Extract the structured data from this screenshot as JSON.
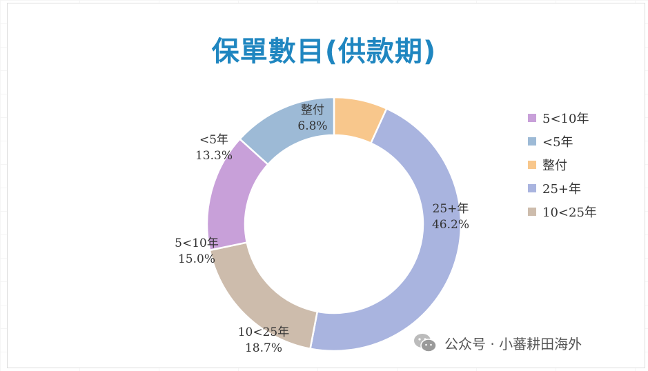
{
  "title": "保單數目(供款期)",
  "watermark": "公众号 · 小蕃耕田海外",
  "chart_data": {
    "type": "pie",
    "donut": true,
    "title": "保單數目(供款期)",
    "slices": [
      {
        "label": "整付",
        "value": 6.8,
        "display": "6.8%",
        "color": "#F8C78C"
      },
      {
        "label": "25+年",
        "value": 46.2,
        "display": "46.2%",
        "color": "#A9B4DF"
      },
      {
        "label": "10<25年",
        "value": 18.7,
        "display": "18.7%",
        "color": "#CDBCAC"
      },
      {
        "label": "5<10年",
        "value": 15.0,
        "display": "15.0%",
        "color": "#C8A0D9"
      },
      {
        "label": "<5年",
        "value": 13.3,
        "display": "13.3%",
        "color": "#9DBAD6"
      }
    ],
    "legend_position": "right",
    "legend": [
      {
        "label": "5<10年",
        "color": "#C8A0D9"
      },
      {
        "label": "<5年",
        "color": "#9DBAD6"
      },
      {
        "label": "整付",
        "color": "#F8C78C"
      },
      {
        "label": "25+年",
        "color": "#A9B4DF"
      },
      {
        "label": "10<25年",
        "color": "#CDBCAC"
      }
    ]
  }
}
